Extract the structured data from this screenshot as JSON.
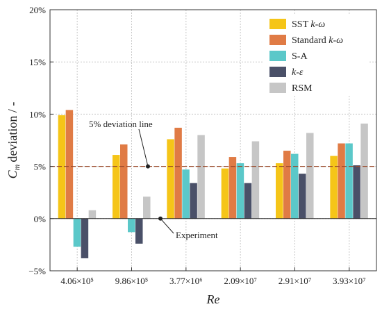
{
  "chart_data": {
    "type": "bar",
    "xlabel": "Re",
    "ylabel": "deviation / -",
    "ylabel_symbol": "C",
    "ylabel_sub": "m",
    "ylim": [
      -5,
      20
    ],
    "yticks": [
      -5,
      0,
      5,
      10,
      15,
      20
    ],
    "ytick_labels": [
      "−5%",
      "0%",
      "5%",
      "10%",
      "15%",
      "20%"
    ],
    "grid": true,
    "legend_position": "top-right",
    "categories": [
      "4.06×10⁵",
      "9.86×10⁵",
      "3.77×10⁶",
      "2.09×10⁷",
      "2.91×10⁷",
      "3.93×10⁷"
    ],
    "series": [
      {
        "name": "SST k-ω",
        "name_prefix": "SST ",
        "name_italic": "k-ω",
        "color": "#F5C518",
        "values": [
          9.9,
          6.1,
          7.6,
          4.8,
          5.3,
          6.0
        ]
      },
      {
        "name": "Standard k-ω",
        "name_prefix": "Standard ",
        "name_italic": "k-ω",
        "color": "#E07B45",
        "values": [
          10.4,
          7.1,
          8.7,
          5.9,
          6.5,
          7.2
        ]
      },
      {
        "name": "S-A",
        "name_prefix": "S-A",
        "name_italic": "",
        "color": "#5BC8C9",
        "values": [
          -2.7,
          -1.3,
          4.7,
          5.3,
          6.2,
          7.2
        ]
      },
      {
        "name": "k-ε",
        "name_prefix": "",
        "name_italic": "k-ε",
        "color": "#4A5068",
        "values": [
          -3.8,
          -2.4,
          3.4,
          3.4,
          4.3,
          5.1
        ]
      },
      {
        "name": "RSM",
        "name_prefix": "RSM",
        "name_italic": "",
        "color": "#C6C6C6",
        "values": [
          0.8,
          2.1,
          8.0,
          7.4,
          8.2,
          9.1
        ]
      }
    ],
    "reference_lines": [
      {
        "value": 5,
        "label": "5% deviation line",
        "color": "#9A4A2A"
      },
      {
        "value": 0,
        "label": "Experiment",
        "color": "#222222"
      }
    ]
  }
}
